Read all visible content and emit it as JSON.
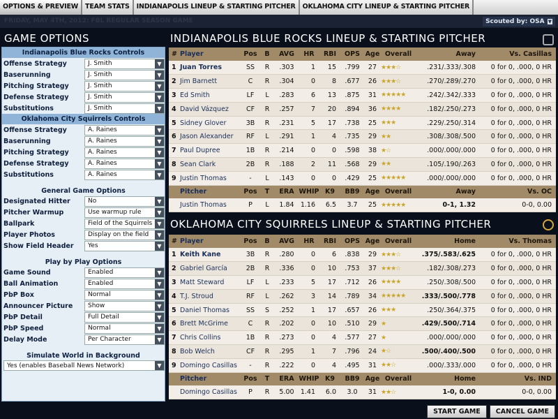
{
  "tabs": [
    "OPTIONS & PREVIEW",
    "TEAM STATS",
    "INDIANAPOLIS LINEUP & STARTING PITCHER",
    "OKLAHOMA CITY LINEUP & STARTING PITCHER"
  ],
  "subtitle": "FRIDAY, MAY 4TH, 2012: FBL REGULAR SEASON GAME",
  "scouted_by": "Scouted by: OSA",
  "left": {
    "title": "GAME OPTIONS",
    "sections": [
      {
        "header": "Indianapolis Blue Rocks Controls",
        "plain": false,
        "rows": [
          [
            "Offense Strategy",
            "J. Smith"
          ],
          [
            "Baserunning",
            "J. Smith"
          ],
          [
            "Pitching Strategy",
            "J. Smith"
          ],
          [
            "Defense Strategy",
            "J. Smith"
          ],
          [
            "Substitutions",
            "J. Smith"
          ]
        ]
      },
      {
        "header": "Oklahoma City Squirrels Controls",
        "plain": false,
        "rows": [
          [
            "Offense Strategy",
            "A. Raines"
          ],
          [
            "Baserunning",
            "A. Raines"
          ],
          [
            "Pitching Strategy",
            "A. Raines"
          ],
          [
            "Defense Strategy",
            "A. Raines"
          ],
          [
            "Substitutions",
            "A. Raines"
          ]
        ]
      },
      {
        "header": "General Game Options",
        "plain": true,
        "rows": [
          [
            "Designated Hitter",
            "No"
          ],
          [
            "Pitcher Warmup",
            "Use warmup rule"
          ],
          [
            "Ballpark",
            "Field of the Squirrels"
          ],
          [
            "Player Photos",
            "Display on the field"
          ],
          [
            "Show Field Header",
            "Yes"
          ]
        ]
      },
      {
        "header": "Play by Play Options",
        "plain": true,
        "rows": [
          [
            "Game Sound",
            "Enabled"
          ],
          [
            "Ball Animation",
            "Enabled"
          ],
          [
            "PbP Box",
            "Normal"
          ],
          [
            "Announcer Picture",
            "Show"
          ],
          [
            "PbP Detail",
            "Full Detail"
          ],
          [
            "PbP Speed",
            "Normal"
          ],
          [
            "Delay Mode",
            "Per Character"
          ]
        ]
      },
      {
        "header": "Simulate World in Background",
        "plain": true,
        "wide": "Yes (enables Baseball News Network)",
        "rows": []
      }
    ]
  },
  "teams": [
    {
      "title": "INDIANAPOLIS BLUE ROCKS LINEUP & STARTING PITCHER",
      "headers": [
        "#",
        "Player",
        "Pos",
        "B",
        "AVG",
        "HR",
        "RBI",
        "OPS",
        "Age",
        "Overall",
        "Away",
        "Vs. Casillas"
      ],
      "rows": [
        [
          "1",
          "Juan Torres",
          "SS",
          "R",
          ".303",
          "1",
          "15",
          ".799",
          "27",
          3.5,
          ".231/.333/.308",
          "0 for 0, .000, 0 HR"
        ],
        [
          "2",
          "Jim Barnett",
          "C",
          "R",
          ".304",
          "0",
          "8",
          ".677",
          "26",
          3.5,
          ".270/.289/.270",
          "0 for 0, .000, 0 HR"
        ],
        [
          "3",
          "Ed Smith",
          "LF",
          "L",
          ".283",
          "6",
          "13",
          ".875",
          "31",
          5,
          ".242/.342/.333",
          "0 for 0, .000, 0 HR"
        ],
        [
          "4",
          "David Vázquez",
          "CF",
          "R",
          ".257",
          "7",
          "20",
          ".894",
          "36",
          4,
          ".182/.250/.273",
          "0 for 0, .000, 0 HR"
        ],
        [
          "5",
          "Sidney Glover",
          "3B",
          "R",
          ".231",
          "5",
          "17",
          ".738",
          "25",
          3,
          ".229/.250/.314",
          "0 for 0, .000, 0 HR"
        ],
        [
          "6",
          "Jason Alexander",
          "RF",
          "L",
          ".291",
          "1",
          "4",
          ".735",
          "29",
          2,
          ".308/.308/.500",
          "0 for 0, .000, 0 HR"
        ],
        [
          "7",
          "Paul Dupree",
          "1B",
          "R",
          ".214",
          "0",
          "0",
          ".598",
          "38",
          1.5,
          ".000/.000/.000",
          "0 for 0, .000, 0 HR"
        ],
        [
          "8",
          "Sean Clark",
          "2B",
          "R",
          ".188",
          "2",
          "11",
          ".568",
          "29",
          2,
          ".105/.190/.263",
          "0 for 0, .000, 0 HR"
        ],
        [
          "9",
          "Justin Thomas",
          "-",
          "L",
          ".143",
          "0",
          "0",
          ".429",
          "25",
          5,
          ".000/.000/.000",
          "0 for 0, .000, 0 HR"
        ]
      ],
      "bold_rows": [
        0
      ],
      "bold_split_rows": [],
      "pitcher_headers": [
        "",
        "Pitcher",
        "Pos",
        "T",
        "ERA",
        "WHIP",
        "K9",
        "BB9",
        "Age",
        "Overall",
        "Away",
        "Vs. OC"
      ],
      "pitcher": [
        "",
        "Justin Thomas",
        "P",
        "L",
        "1.84",
        "1.16",
        "6.5",
        "3.7",
        "25",
        5,
        "0-1, 1.32",
        "0-0, 0.00"
      ]
    },
    {
      "title": "OKLAHOMA CITY SQUIRRELS LINEUP & STARTING PITCHER",
      "headers": [
        "#",
        "Player",
        "Pos",
        "B",
        "AVG",
        "HR",
        "RBI",
        "OPS",
        "Age",
        "Overall",
        "Home",
        "Vs. Thomas"
      ],
      "rows": [
        [
          "1",
          "Keith Kane",
          "3B",
          "R",
          ".280",
          "0",
          "6",
          ".838",
          "29",
          3.5,
          ".375/.583/.625",
          "0 for 0, .000, 0 HR"
        ],
        [
          "2",
          "Gabriel García",
          "2B",
          "R",
          ".336",
          "0",
          "10",
          ".753",
          "37",
          3.5,
          ".182/.308/.273",
          "0 for 0, .000, 0 HR"
        ],
        [
          "3",
          "Matt Steward",
          "LF",
          "L",
          ".233",
          "5",
          "17",
          ".712",
          "26",
          4,
          ".250/.308/.500",
          "0 for 0, .000, 0 HR"
        ],
        [
          "4",
          "T.J. Stroud",
          "RF",
          "L",
          ".262",
          "3",
          "14",
          ".789",
          "34",
          5,
          ".333/.500/.778",
          "0 for 0, .000, 0 HR"
        ],
        [
          "5",
          "Daniel Thomas",
          "SS",
          "S",
          ".252",
          "1",
          "17",
          ".657",
          "26",
          3,
          ".250/.364/.375",
          "0 for 0, .000, 0 HR"
        ],
        [
          "6",
          "Brett McGrime",
          "C",
          "R",
          ".202",
          "0",
          "10",
          ".510",
          "29",
          1,
          ".429/.500/.714",
          "0 for 0, .000, 0 HR"
        ],
        [
          "7",
          "Chris Collins",
          "1B",
          "R",
          ".273",
          "0",
          "4",
          ".577",
          "27",
          1,
          ".000/.000/.000",
          "0 for 0, .000, 0 HR"
        ],
        [
          "8",
          "Bob Welch",
          "CF",
          "R",
          ".295",
          "1",
          "7",
          ".796",
          "24",
          1.5,
          ".500/.400/.500",
          "0 for 0, .000, 0 HR"
        ],
        [
          "9",
          "Domingo Casillas",
          "-",
          "R",
          ".222",
          "0",
          "4",
          ".495",
          "31",
          2.5,
          ".000/.333/.000",
          "0 for 0, .000, 0 HR"
        ]
      ],
      "bold_rows": [
        0
      ],
      "bold_split_rows": [
        0,
        3,
        5,
        7
      ],
      "pitcher_headers": [
        "",
        "Pitcher",
        "Pos",
        "T",
        "ERA",
        "WHIP",
        "K9",
        "BB9",
        "Age",
        "Overall",
        "Home",
        "Vs. IND"
      ],
      "pitcher": [
        "",
        "Domingo Casillas",
        "P",
        "R",
        "5.00",
        "1.41",
        "6.0",
        "3.0",
        "31",
        2.5,
        "1-0, 0.00",
        "0-0, 0.00"
      ]
    }
  ],
  "buttons": {
    "start": "START GAME",
    "cancel": "CANCEL GAME"
  },
  "colors": {
    "header_bg": "#a08a68",
    "panel_bg": "#e6eef6",
    "section_bg": "#8fb4d8",
    "star": "#c9a52a"
  }
}
